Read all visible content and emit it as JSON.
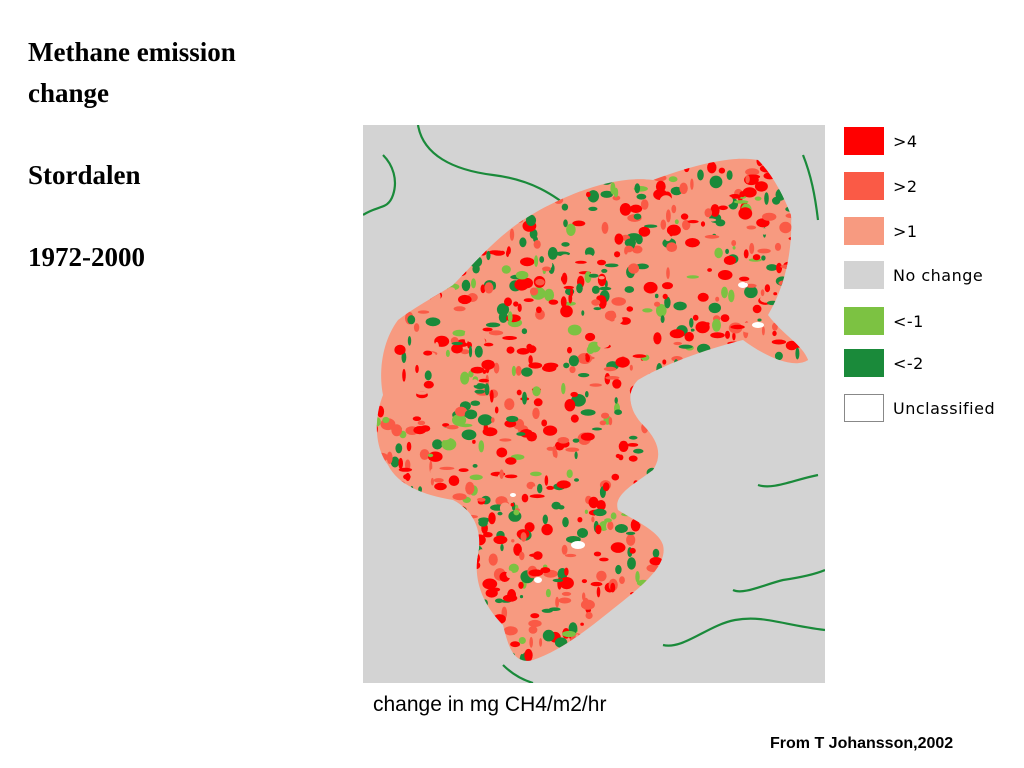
{
  "title": {
    "line1": "Methane emission",
    "line2": "change",
    "place": "Stordalen",
    "period": "1972-2000"
  },
  "legend": {
    "items": [
      {
        "label": ">4",
        "color": "#ff0000"
      },
      {
        "label": ">2",
        "color": "#fa5a46"
      },
      {
        "label": ">1",
        "color": "#f79a80"
      },
      {
        "label": "No change",
        "color": "#d3d3d3"
      },
      {
        "label": "<-1",
        "color": "#7cc242"
      },
      {
        "label": "<-2",
        "color": "#1a8a3a"
      },
      {
        "label": "Unclassified",
        "color": "#ffffff"
      }
    ]
  },
  "caption": "change in mg CH4/m2/hr",
  "credit": "From T Johansson,2002",
  "colors": {
    "background": "#ffffff",
    "map_background": "#d3d3d3",
    "river": "#1a8a3a"
  }
}
